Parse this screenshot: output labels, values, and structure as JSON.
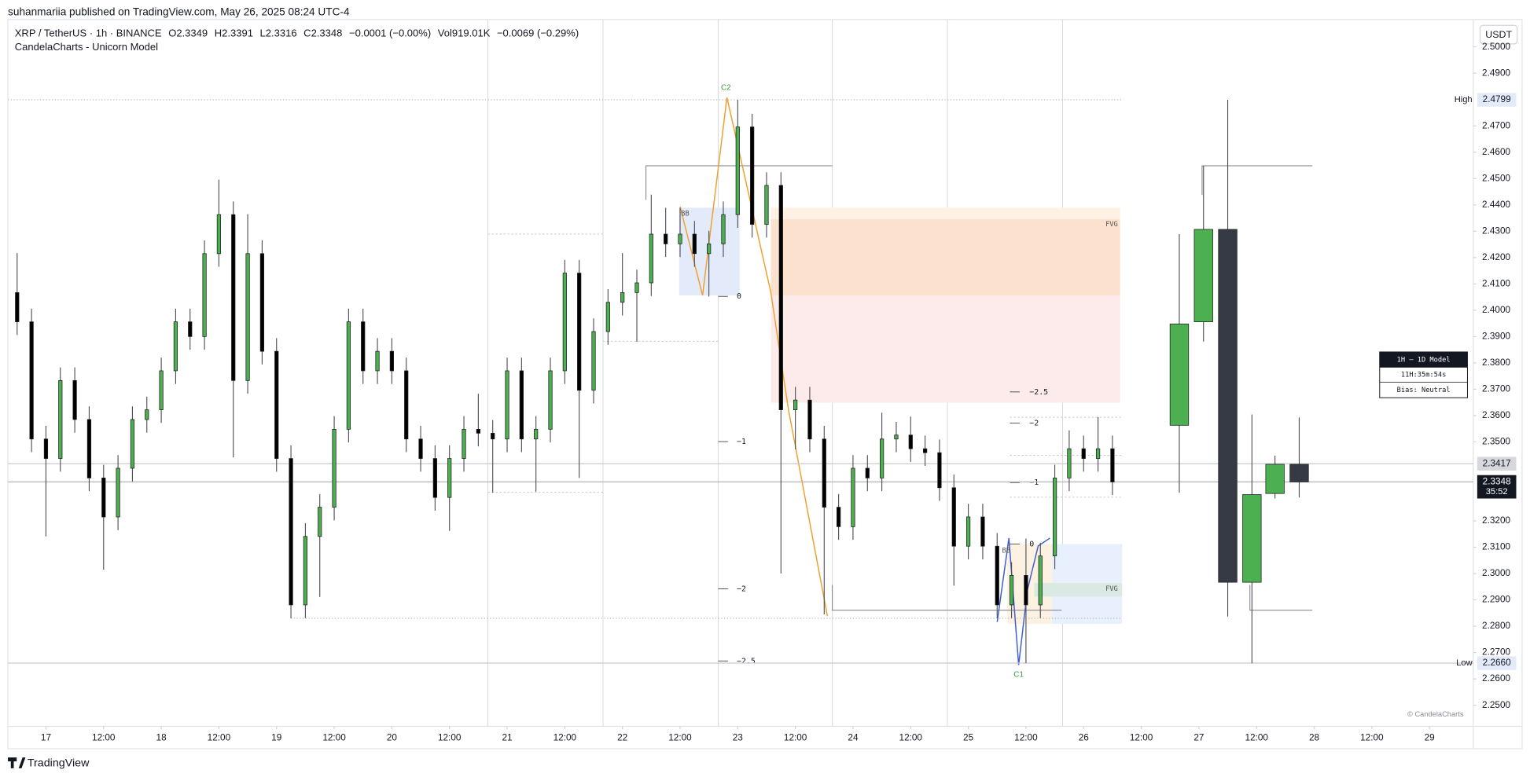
{
  "header": {
    "published": "suhanmariia published on TradingView.com, May 26, 2025 08:24 UTC-4",
    "symbol": "XRP / TetherUS · 1h · BINANCE",
    "stats": [
      "O2.3349",
      "H2.3391",
      "L2.3316",
      "C2.3348",
      "−0.0001 (−0.00%)",
      "Vol919.01K",
      "−0.0069 (−0.29%)"
    ],
    "indicator": "CandelaCharts - Unicorn Model"
  },
  "chart_data": {
    "type": "candlestick",
    "x": [
      16.75,
      16.875,
      17,
      17.125,
      17.25,
      17.375,
      17.5,
      17.625,
      17.75,
      17.875,
      18,
      18.125,
      18.25,
      18.375,
      18.5,
      18.625,
      18.75,
      18.875,
      19,
      19.125,
      19.25,
      19.375,
      19.5,
      19.625,
      19.75,
      19.875,
      20,
      20.125,
      20.25,
      20.375,
      20.5,
      20.625,
      20.75,
      20.875,
      21,
      21.125,
      21.25,
      21.375,
      21.5,
      21.625,
      21.75,
      21.875,
      22,
      22.125,
      22.25,
      22.375,
      22.5,
      22.625,
      22.75,
      22.875,
      23,
      23.125,
      23.25,
      23.375,
      23.5,
      23.625,
      23.75,
      23.875,
      24,
      24.125,
      24.25,
      24.375,
      24.5,
      24.625,
      24.75,
      24.875,
      25,
      25.125,
      25.25,
      25.375,
      25.5,
      25.625,
      25.75,
      25.875,
      26,
      26.125,
      26.25
    ],
    "open": [
      2.4067,
      2.3956,
      2.3511,
      2.3437,
      2.3733,
      2.3585,
      2.3363,
      2.3215,
      2.34,
      2.3585,
      2.3622,
      2.377,
      2.3956,
      2.39,
      2.4215,
      2.4363,
      2.3733,
      2.4215,
      2.3844,
      2.3437,
      2.2881,
      2.3141,
      2.3252,
      2.3548,
      2.3956,
      2.377,
      2.3844,
      2.377,
      2.3511,
      2.3437,
      2.3289,
      2.3437,
      2.3548,
      2.3533,
      2.3511,
      2.377,
      2.3511,
      2.3548,
      2.377,
      2.4141,
      2.3696,
      2.3919,
      2.403,
      2.4067,
      2.4104,
      2.4289,
      2.4252,
      2.4289,
      2.4215,
      2.4252,
      2.4363,
      2.4696,
      2.4326,
      2.4474,
      2.3622,
      2.3659,
      2.3511,
      2.3252,
      2.3178,
      2.34,
      2.3363,
      2.3511,
      2.3526,
      2.3474,
      2.3459,
      2.3326,
      2.3104,
      2.3215,
      2.3104,
      2.2881,
      2.2993,
      2.2881,
      2.3067,
      2.3363,
      2.3474,
      2.3437,
      2.3474
    ],
    "high": [
      2.4217,
      2.4006,
      2.3561,
      2.3783,
      2.3783,
      2.3635,
      2.3413,
      2.345,
      2.3635,
      2.3672,
      2.382,
      2.4006,
      2.4006,
      2.4265,
      2.4496,
      2.4413,
      2.4365,
      2.4265,
      2.3894,
      2.3487,
      2.3191,
      2.3302,
      2.3598,
      2.4006,
      2.4006,
      2.3894,
      2.3894,
      2.382,
      2.3561,
      2.3487,
      2.3487,
      2.3598,
      2.3683,
      2.3583,
      2.382,
      2.382,
      2.3598,
      2.382,
      2.4191,
      2.4191,
      2.3969,
      2.408,
      2.4217,
      2.4154,
      2.4439,
      2.4389,
      2.4389,
      2.4339,
      2.4302,
      2.4413,
      2.4799,
      2.4746,
      2.4524,
      2.4524,
      2.3709,
      2.3709,
      2.3561,
      2.3302,
      2.345,
      2.345,
      2.3611,
      2.3576,
      2.3596,
      2.3524,
      2.3509,
      2.3376,
      2.3265,
      2.3265,
      2.3154,
      2.3043,
      2.3133,
      2.3117,
      2.3413,
      2.3544,
      2.3524,
      2.3594,
      2.3524
    ],
    "low": [
      2.3906,
      2.3461,
      2.3141,
      2.3387,
      2.3535,
      2.3313,
      2.3015,
      2.3165,
      2.335,
      2.3535,
      2.3572,
      2.372,
      2.385,
      2.385,
      2.4165,
      2.3441,
      2.3683,
      2.3794,
      2.3387,
      2.283,
      2.2831,
      2.2911,
      2.3202,
      2.3498,
      2.372,
      2.372,
      2.372,
      2.3461,
      2.3387,
      2.3239,
      2.3162,
      2.3387,
      2.3483,
      2.3307,
      2.3461,
      2.3461,
      2.3311,
      2.3498,
      2.372,
      2.3363,
      2.3646,
      2.3869,
      2.398,
      2.388,
      2.4054,
      2.4202,
      2.4202,
      2.4165,
      2.4052,
      2.4202,
      2.4313,
      2.4276,
      2.4276,
      2.3,
      2.3472,
      2.3461,
      2.2845,
      2.3128,
      2.3128,
      2.3313,
      2.3313,
      2.3461,
      2.3424,
      2.3409,
      2.3276,
      2.2954,
      2.3054,
      2.3054,
      2.2831,
      2.2831,
      2.266,
      2.2831,
      2.3017,
      2.3313,
      2.3387,
      2.3387,
      2.3298
    ],
    "close": [
      2.3956,
      2.3511,
      2.3437,
      2.3733,
      2.3585,
      2.3363,
      2.3215,
      2.34,
      2.3585,
      2.3622,
      2.377,
      2.3956,
      2.39,
      2.4215,
      2.4363,
      2.3733,
      2.4215,
      2.3844,
      2.3437,
      2.2881,
      2.3141,
      2.3252,
      2.3548,
      2.3956,
      2.377,
      2.3844,
      2.377,
      2.3511,
      2.3437,
      2.3289,
      2.3437,
      2.3548,
      2.3533,
      2.3511,
      2.377,
      2.3511,
      2.3548,
      2.377,
      2.4141,
      2.3696,
      2.3919,
      2.403,
      2.4067,
      2.4104,
      2.4289,
      2.4252,
      2.4289,
      2.4215,
      2.4252,
      2.4363,
      2.4696,
      2.4326,
      2.4474,
      2.3622,
      2.3659,
      2.3511,
      2.3252,
      2.3178,
      2.34,
      2.3363,
      2.3511,
      2.3526,
      2.3474,
      2.3459,
      2.3326,
      2.3104,
      2.3215,
      2.3104,
      2.2881,
      2.2993,
      2.2881,
      2.3067,
      2.3363,
      2.3474,
      2.3437,
      2.3474,
      2.3348
    ],
    "up_color": "#4caf50",
    "down_color": "#000000",
    "htf": {
      "x": [
        26.83,
        27.04,
        27.25,
        27.46,
        27.66,
        27.87
      ],
      "open": [
        2.3563,
        2.3956,
        2.4307,
        2.2967,
        2.3304,
        2.3415
      ],
      "high": [
        2.4289,
        2.4548,
        2.4799,
        2.3604,
        2.3448,
        2.3593
      ],
      "low": [
        2.3307,
        2.3881,
        2.2837,
        2.2659,
        2.3285,
        2.3289
      ],
      "close": [
        2.3948,
        2.4307,
        2.2967,
        2.33,
        2.3415,
        2.3348
      ],
      "down_color": "#363a45"
    },
    "xlim": [
      16.67,
      29.38
    ],
    "ylim": [
      2.242,
      2.5104
    ],
    "xticks": [
      17,
      {
        "value": 17.5,
        "label": "12:00"
      },
      18,
      {
        "value": 18.5,
        "label": "12:00"
      },
      19,
      {
        "value": 19.5,
        "label": "12:00"
      },
      20,
      {
        "value": 20.5,
        "label": "12:00"
      },
      21,
      {
        "value": 21.5,
        "label": "12:00"
      },
      22,
      {
        "value": 22.5,
        "label": "12:00"
      },
      23,
      {
        "value": 23.5,
        "label": "12:00"
      },
      24,
      {
        "value": 24.5,
        "label": "12:00"
      },
      25,
      {
        "value": 25.5,
        "label": "12:00"
      },
      26,
      {
        "value": 26.5,
        "label": "12:00"
      },
      27,
      {
        "value": 27.5,
        "label": "12:00"
      },
      28,
      {
        "value": 28.5,
        "label": "12:00"
      },
      29
    ],
    "yticks": [
      {
        "value": 2.25,
        "label": "2.2500"
      },
      {
        "value": 2.26,
        "label": "2.2600"
      },
      {
        "value": 2.27,
        "label": "2.2700"
      },
      {
        "value": 2.28,
        "label": "2.2800"
      },
      {
        "value": 2.29,
        "label": "2.2900"
      },
      {
        "value": 2.3,
        "label": "2.3000"
      },
      {
        "value": 2.31,
        "label": "2.3100"
      },
      {
        "value": 2.32,
        "label": "2.3200"
      },
      {
        "value": 2.35,
        "label": "2.3500"
      },
      {
        "value": 2.36,
        "label": "2.3600"
      },
      {
        "value": 2.37,
        "label": "2.3700"
      },
      {
        "value": 2.38,
        "label": "2.3800"
      },
      {
        "value": 2.39,
        "label": "2.3900"
      },
      {
        "value": 2.4,
        "label": "2.4000"
      },
      {
        "value": 2.41,
        "label": "2.4100"
      },
      {
        "value": 2.42,
        "label": "2.4200"
      },
      {
        "value": 2.43,
        "label": "2.4300"
      },
      {
        "value": 2.44,
        "label": "2.4400"
      },
      {
        "value": 2.45,
        "label": "2.4500"
      },
      {
        "value": 2.46,
        "label": "2.4600"
      },
      {
        "value": 2.47,
        "label": "2.4700"
      },
      {
        "value": 2.49,
        "label": "2.4900"
      },
      {
        "value": 2.5,
        "label": "2.5000"
      }
    ],
    "grid": false,
    "currency": "USDT",
    "high_marker": {
      "label": "High",
      "value": 2.4799
    },
    "low_marker": {
      "label": "Low",
      "value": {
        "value": 2.266,
        "label": "2.2660"
      }
    },
    "prev_close": 2.3417,
    "last": 2.3348,
    "countdown": "35:52",
    "overlay": {
      "c2": "C2",
      "c1": "C1",
      "bb": "BB",
      "fvg": "FVG",
      "fib_left": [
        "0",
        "−1",
        "−2",
        "−2.5"
      ],
      "fib_right": [
        "−2.5",
        "−2",
        "−1",
        "0"
      ]
    }
  },
  "panel": {
    "title": "1H – 1D Model",
    "timer": "11H:35m:54s",
    "bias": "Bias: Neutral"
  },
  "footer": {
    "copyright": "© CandelaCharts",
    "brand": "TradingView"
  }
}
